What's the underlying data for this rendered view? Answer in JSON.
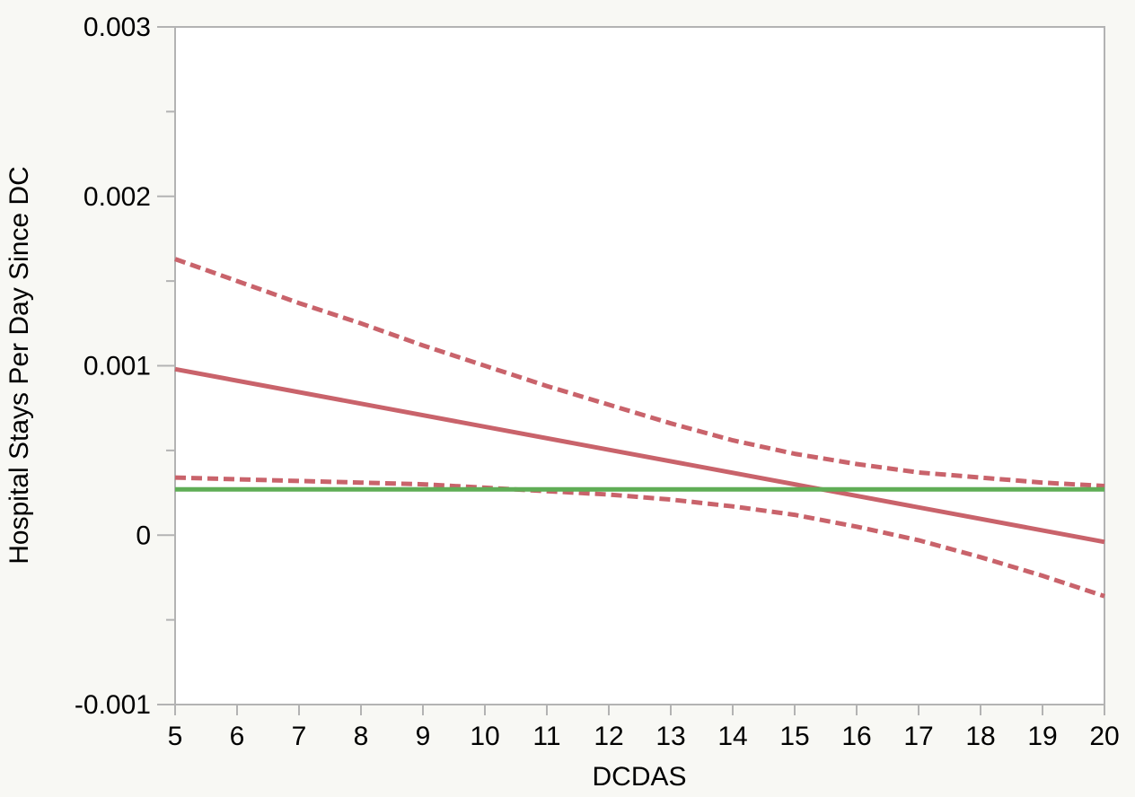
{
  "chart_data": {
    "type": "line",
    "title": "",
    "xlabel": "DCDAS",
    "ylabel": "Hospital Stays Per Day Since DC",
    "xlim": [
      5,
      20
    ],
    "ylim": [
      -0.001,
      0.003
    ],
    "grid": false,
    "x_ticks": [
      "5",
      "6",
      "7",
      "8",
      "9",
      "10",
      "11",
      "12",
      "13",
      "14",
      "15",
      "16",
      "17",
      "18",
      "19",
      "20"
    ],
    "y_ticks": [
      {
        "value": -0.001,
        "label": "-0.001"
      },
      {
        "value": 0,
        "label": "0"
      },
      {
        "value": 0.001,
        "label": "0.001"
      },
      {
        "value": 0.002,
        "label": "0.002"
      },
      {
        "value": 0.003,
        "label": "0.003"
      }
    ],
    "y_minor_ticks": [
      -0.0005,
      0.0005,
      0.0015,
      0.0025
    ],
    "colors": {
      "fit": "#c9636b",
      "mean": "#5fad56",
      "axis": "#b3b3b3"
    },
    "series": [
      {
        "style": "solid",
        "color": "#c9636b",
        "x": [
          5,
          20
        ],
        "values": [
          0.00098,
          -4e-05
        ]
      },
      {
        "style": "dashed",
        "color": "#c9636b",
        "x": [
          5,
          6,
          7,
          8,
          9,
          10,
          11,
          12,
          13,
          14,
          15,
          16,
          17,
          18,
          19,
          20
        ],
        "values": [
          0.00163,
          0.0015,
          0.00137,
          0.00125,
          0.00112,
          0.001,
          0.00088,
          0.00077,
          0.00066,
          0.00056,
          0.00048,
          0.00042,
          0.00037,
          0.00034,
          0.00031,
          0.00029
        ]
      },
      {
        "style": "dashed",
        "color": "#c9636b",
        "x": [
          5,
          6,
          7,
          8,
          9,
          10,
          11,
          12,
          13,
          14,
          15,
          16,
          17,
          18,
          19,
          20
        ],
        "values": [
          0.00034,
          0.00033,
          0.00032,
          0.00031,
          0.0003,
          0.00028,
          0.00026,
          0.00024,
          0.00021,
          0.00017,
          0.00012,
          5e-05,
          -3e-05,
          -0.00013,
          -0.00024,
          -0.00036
        ]
      },
      {
        "style": "solid",
        "color": "#5fad56",
        "x": [
          5,
          20
        ],
        "values": [
          0.00027,
          0.00027
        ]
      }
    ]
  }
}
